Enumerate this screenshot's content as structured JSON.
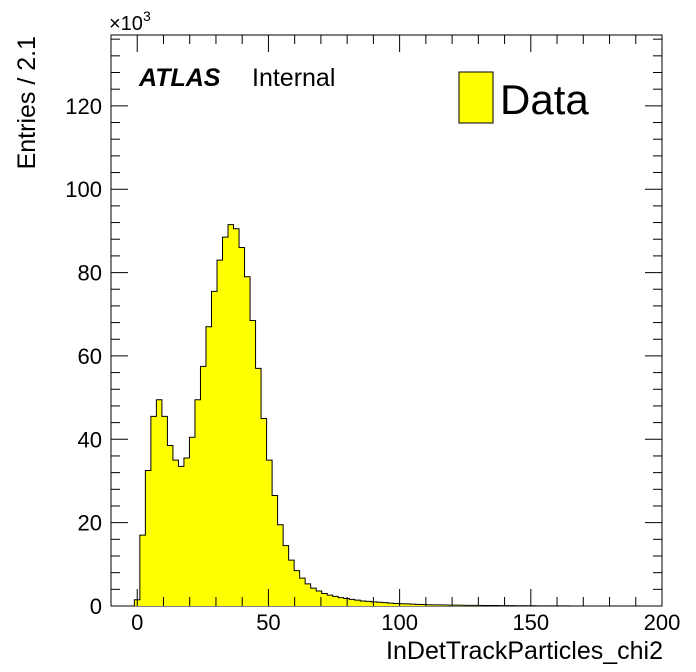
{
  "chart_data": {
    "type": "bar",
    "histogram": true,
    "xlabel": "InDetTrackParticles_chi2",
    "ylabel": "Entries / 2.1",
    "y_multiplier": "×10",
    "y_multiplier_exponent": "3",
    "xlim": [
      -10,
      200
    ],
    "ylim": [
      0,
      137
    ],
    "x_ticks": [
      0,
      50,
      100,
      150,
      200
    ],
    "y_ticks": [
      0,
      20,
      40,
      60,
      80,
      100,
      120
    ],
    "bin_width": 2.1,
    "grid": false,
    "legend_position": "top-right",
    "fill_color": "#ffff00",
    "line_color": "#000000",
    "experiment_label": "ATLAS",
    "experiment_sublabel": "Internal",
    "series": [
      {
        "name": "Data",
        "bin_edges_start": -1.1,
        "values": [
          1.5,
          17,
          32.5,
          45.5,
          49.5,
          45.5,
          38.5,
          35,
          33.5,
          35.5,
          40.5,
          49.5,
          57.5,
          67,
          75.5,
          83,
          88.5,
          91.5,
          90.5,
          86,
          79,
          68.5,
          57,
          45,
          35,
          26.5,
          19.5,
          14.5,
          11,
          8.5,
          6.7,
          5.3,
          4.3,
          3.6,
          3.0,
          2.6,
          2.3,
          2.0,
          1.8,
          1.6,
          1.4,
          1.2,
          1.1,
          1.0,
          0.9,
          0.8,
          0.7,
          0.6,
          0.55,
          0.5,
          0.45,
          0.4,
          0.35,
          0.3,
          0.28,
          0.26,
          0.24,
          0.22,
          0.2,
          0.18,
          0.16,
          0.15,
          0.14,
          0.13,
          0.12,
          0.11,
          0.1,
          0.09,
          0.08,
          0.07,
          0.06,
          0.05,
          0.05,
          0.04,
          0.04,
          0.03,
          0.03,
          0.02,
          0.02,
          0.01,
          0.01,
          0.01,
          0.01,
          0.005,
          0.005,
          0.005,
          0.005,
          0.005,
          0.005,
          0.005,
          0.005
        ]
      }
    ]
  }
}
